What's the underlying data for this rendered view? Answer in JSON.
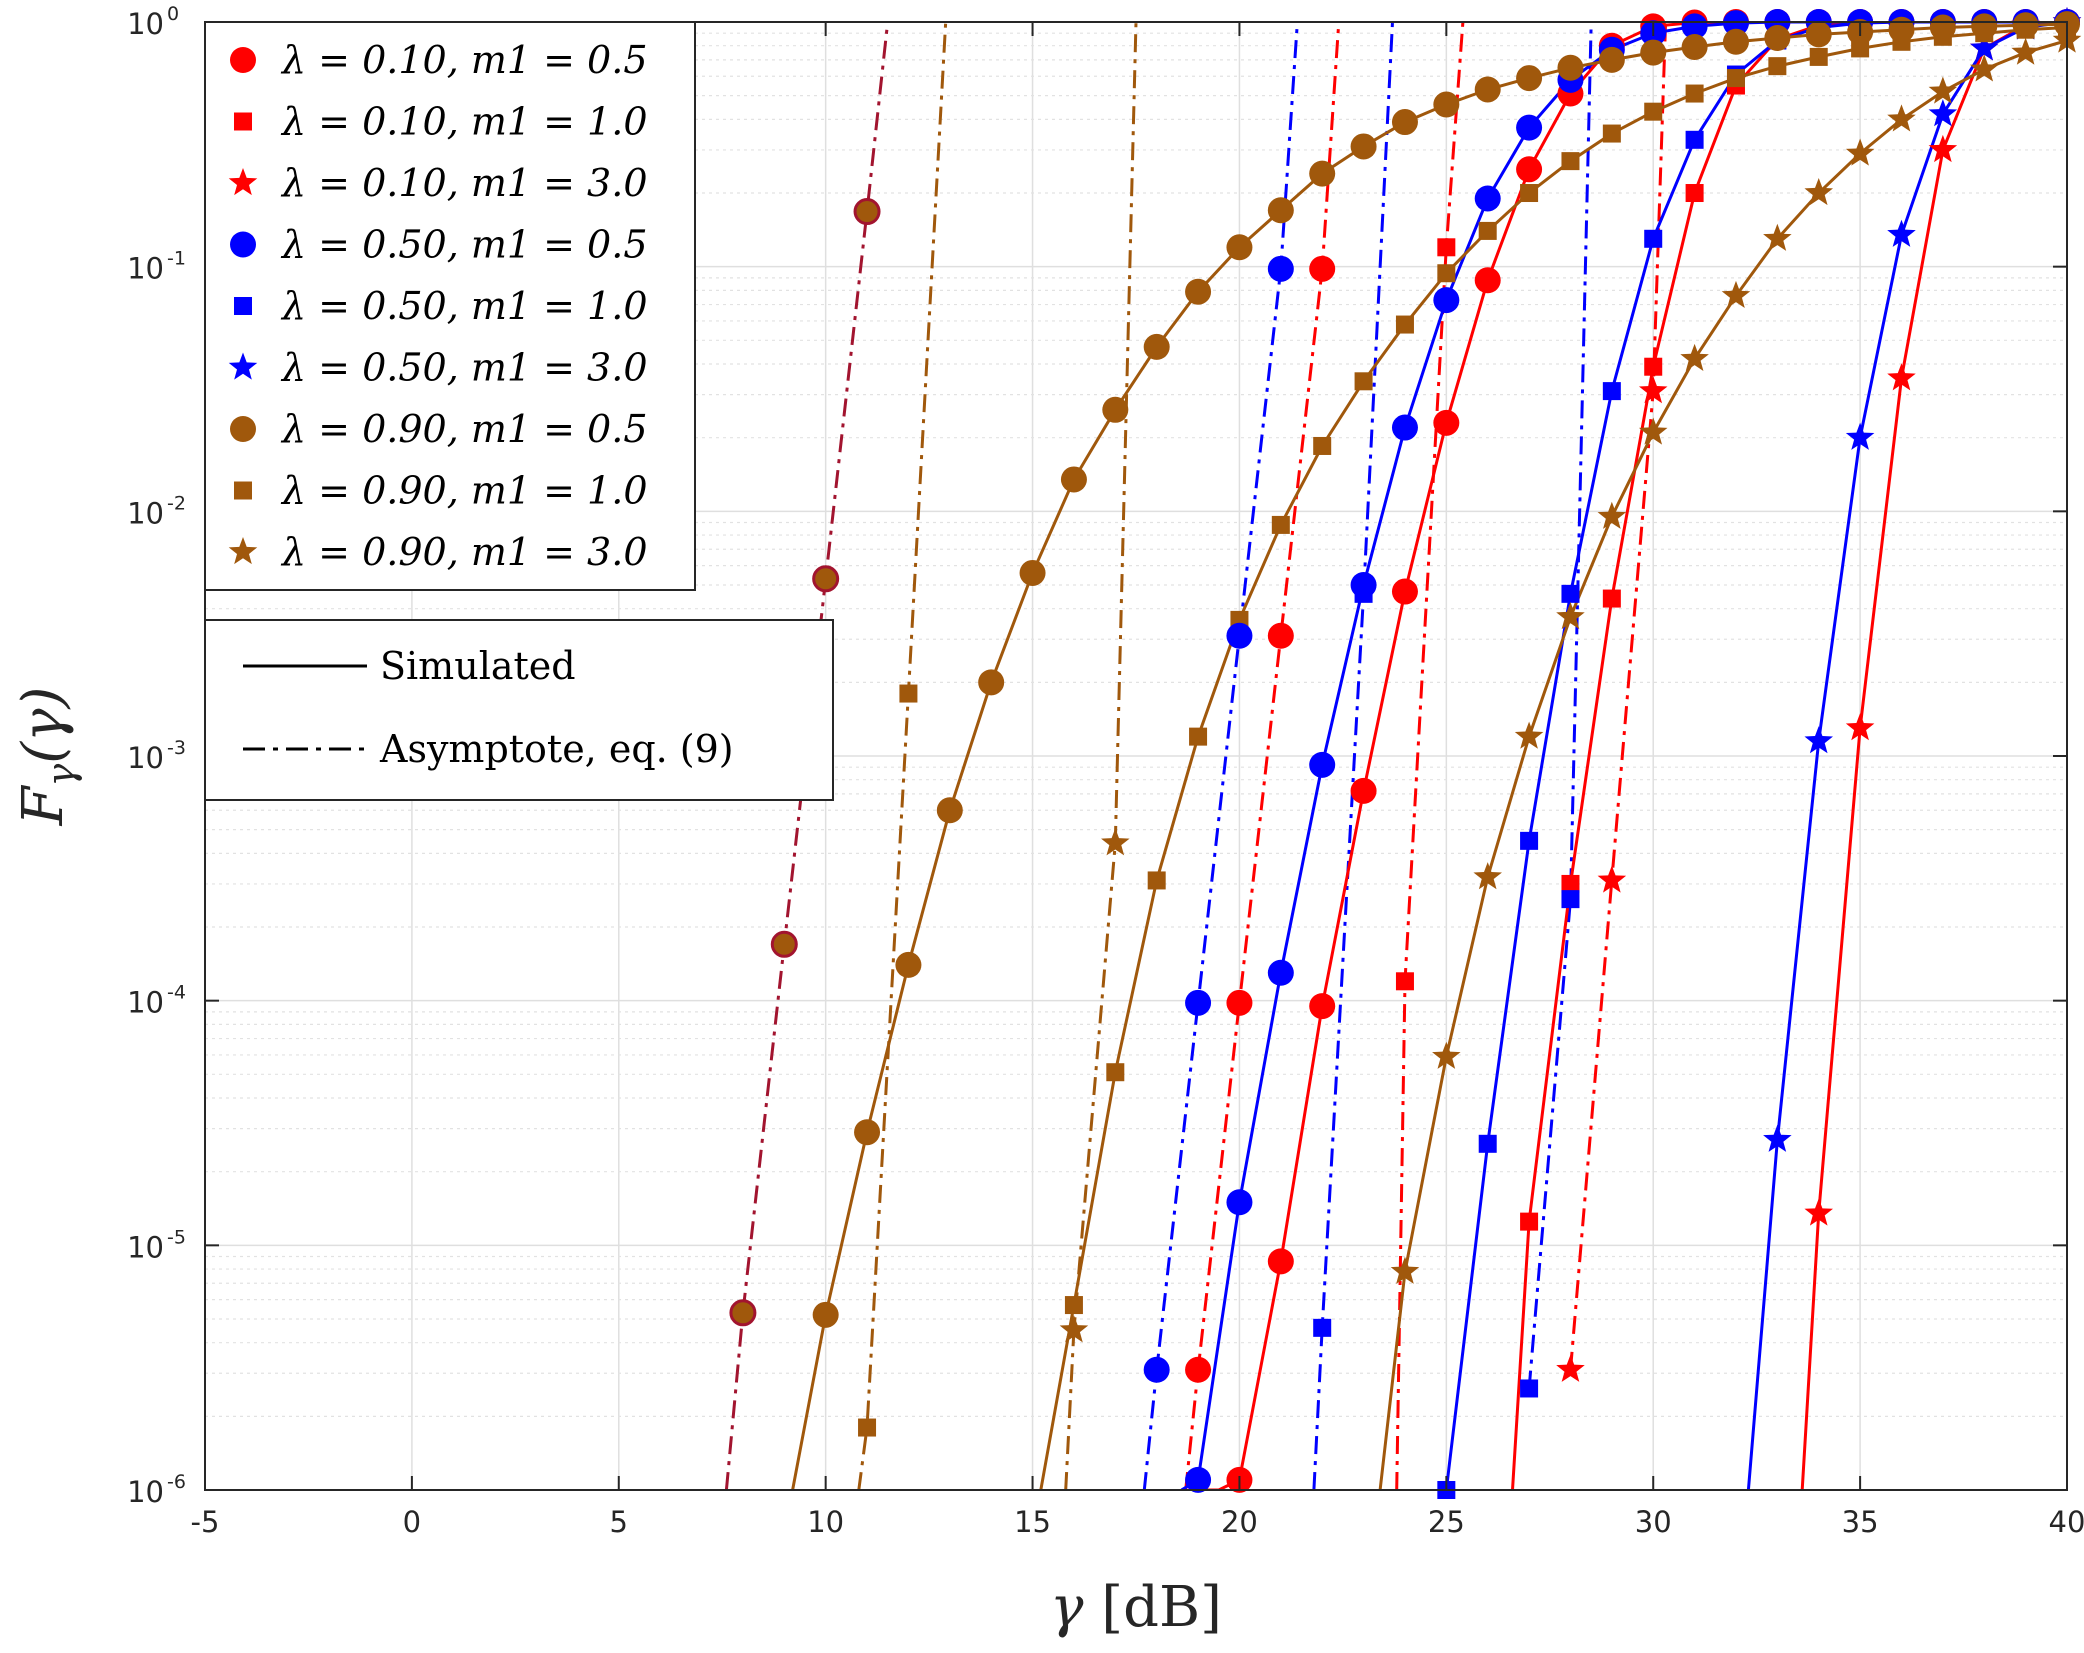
{
  "chart_data": {
    "type": "line",
    "xlabel": "γ [dB]",
    "ylabel": "F_γ(γ)",
    "ylabel_main": "F",
    "ylabel_sub": "γ",
    "ylabel_tail": "(γ)",
    "xlim": [
      -5,
      40
    ],
    "ylim": [
      1e-06,
      1
    ],
    "yscale": "log",
    "grid": true,
    "minor_grid": true,
    "x_ticks": [
      "-5",
      "0",
      "5",
      "10",
      "15",
      "20",
      "25",
      "30",
      "35",
      "40"
    ],
    "y_ticks": [
      {
        "base": "10",
        "exp": "-6"
      },
      {
        "base": "10",
        "exp": "-5"
      },
      {
        "base": "10",
        "exp": "-4"
      },
      {
        "base": "10",
        "exp": "-3"
      },
      {
        "base": "10",
        "exp": "-2"
      },
      {
        "base": "10",
        "exp": "-1"
      },
      {
        "base": "10",
        "exp": "0"
      }
    ],
    "colors": {
      "red": "#ff0000",
      "blue": "#0000ff",
      "brown": "#a0580c",
      "dark_red": "#a2142f"
    },
    "series": [
      {
        "name": "λ = 0.10, m1 = 0.5",
        "color": "#ff0000",
        "marker": "circle",
        "x": [
          19.2,
          19.5,
          20,
          21,
          22,
          23,
          24,
          25,
          26,
          27,
          28,
          29,
          30,
          31,
          32,
          33,
          34,
          35,
          36,
          37,
          38,
          39,
          40
        ],
        "y": [
          1e-06,
          1e-06,
          1.1e-06,
          8.6e-06,
          9.5e-05,
          0.00072,
          0.0047,
          0.023,
          0.088,
          0.25,
          0.51,
          0.8,
          0.96,
          0.995,
          1,
          1,
          1,
          1,
          1,
          1,
          1,
          1,
          1
        ]
      },
      {
        "name": "λ = 0.10, m1 = 1.0",
        "color": "#ff0000",
        "marker": "square",
        "x": [
          26.6,
          27,
          28,
          29,
          30,
          31,
          32,
          33,
          34,
          35,
          36,
          37,
          38,
          39,
          40
        ],
        "y": [
          1e-06,
          1.25e-05,
          0.0003,
          0.0044,
          0.039,
          0.2,
          0.55,
          0.85,
          0.97,
          0.995,
          1,
          1,
          1,
          1,
          1
        ]
      },
      {
        "name": "λ = 0.10, m1 = 3.0",
        "color": "#ff0000",
        "marker": "star",
        "x": [
          33.6,
          34,
          35,
          36,
          37,
          38,
          39,
          40
        ],
        "y": [
          1e-06,
          1.35e-05,
          0.0013,
          0.035,
          0.3,
          0.78,
          0.97,
          1
        ]
      },
      {
        "name": "λ = 0.50, m1 = 0.5",
        "color": "#0000ff",
        "marker": "circle",
        "x": [
          18.6,
          19,
          20,
          21,
          22,
          23,
          24,
          25,
          26,
          27,
          28,
          29,
          30,
          31,
          32,
          33,
          34,
          35,
          36,
          37,
          38,
          39,
          40
        ],
        "y": [
          1e-06,
          1.1e-06,
          1.5e-05,
          0.00013,
          0.00092,
          0.005,
          0.022,
          0.073,
          0.19,
          0.37,
          0.58,
          0.77,
          0.9,
          0.96,
          0.99,
          1,
          1,
          1,
          1,
          1,
          1,
          1,
          1
        ]
      },
      {
        "name": "λ = 0.50, m1 = 1.0",
        "color": "#0000ff",
        "marker": "square",
        "x": [
          25,
          26,
          27,
          28,
          29,
          30,
          31,
          32,
          33,
          34,
          35,
          36,
          37,
          38,
          39,
          40
        ],
        "y": [
          1e-06,
          2.6e-05,
          0.00045,
          0.0046,
          0.031,
          0.13,
          0.33,
          0.61,
          0.84,
          0.95,
          0.99,
          1,
          1,
          1,
          1,
          1
        ]
      },
      {
        "name": "λ = 0.50, m1 = 3.0",
        "color": "#0000ff",
        "marker": "star",
        "x": [
          32.3,
          33,
          34,
          35,
          36,
          37,
          38,
          39,
          40
        ],
        "y": [
          1e-06,
          2.7e-05,
          0.00115,
          0.02,
          0.135,
          0.42,
          0.78,
          0.95,
          1
        ]
      },
      {
        "name": "λ = 0.90, m1 = 0.5",
        "color": "#a0580c",
        "marker": "circle",
        "x": [
          9.2,
          10,
          11,
          12,
          13,
          14,
          15,
          16,
          17,
          18,
          19,
          20,
          21,
          22,
          23,
          24,
          25,
          26,
          27,
          28,
          29,
          30,
          31,
          32,
          33,
          34,
          35,
          36,
          37,
          38,
          39,
          40
        ],
        "y": [
          1e-06,
          5.2e-06,
          2.9e-05,
          0.00014,
          0.0006,
          0.002,
          0.0056,
          0.0135,
          0.026,
          0.047,
          0.079,
          0.12,
          0.17,
          0.24,
          0.31,
          0.39,
          0.46,
          0.53,
          0.59,
          0.65,
          0.7,
          0.75,
          0.79,
          0.83,
          0.86,
          0.89,
          0.91,
          0.93,
          0.95,
          0.96,
          0.97,
          0.98
        ]
      },
      {
        "name": "λ = 0.90, m1 = 1.0",
        "color": "#a0580c",
        "marker": "square",
        "x": [
          15.2,
          16,
          17,
          18,
          19,
          20,
          21,
          22,
          23,
          24,
          25,
          26,
          27,
          28,
          29,
          30,
          31,
          32,
          33,
          34,
          35,
          36,
          37,
          38,
          39,
          40
        ],
        "y": [
          1e-06,
          5.7e-06,
          5.1e-05,
          0.00031,
          0.0012,
          0.0036,
          0.0088,
          0.0185,
          0.034,
          0.058,
          0.094,
          0.14,
          0.2,
          0.27,
          0.35,
          0.43,
          0.51,
          0.59,
          0.66,
          0.72,
          0.78,
          0.83,
          0.87,
          0.9,
          0.93,
          0.95
        ]
      },
      {
        "name": "λ = 0.90, m1 = 3.0",
        "color": "#a0580c",
        "marker": "star",
        "x": [
          23.4,
          24,
          25,
          26,
          27,
          28,
          29,
          30,
          31,
          32,
          33,
          34,
          35,
          36,
          37,
          38,
          39,
          40
        ],
        "y": [
          1e-06,
          7.8e-06,
          5.9e-05,
          0.00032,
          0.0012,
          0.0037,
          0.0095,
          0.021,
          0.042,
          0.076,
          0.13,
          0.2,
          0.29,
          0.4,
          0.52,
          0.64,
          0.75,
          0.84
        ]
      }
    ],
    "asymptotes": [
      {
        "color": "#a2142f",
        "x": [
          7.6,
          8,
          9,
          10,
          11,
          11.5
        ],
        "y": [
          1e-06,
          5.3e-06,
          0.00017,
          0.0053,
          0.168,
          1
        ],
        "markers": [
          8,
          9,
          10,
          11
        ]
      },
      {
        "color": "#a0580c",
        "x": [
          10.8,
          11,
          12,
          12.9
        ],
        "y": [
          1e-06,
          1.8e-06,
          0.0018,
          1
        ],
        "markers": [
          11,
          12
        ]
      },
      {
        "color": "#a0580c",
        "x": [
          15.8,
          16,
          17,
          17.5
        ],
        "y": [
          1e-06,
          4.5e-06,
          0.00044,
          1
        ],
        "markers": [
          16,
          17
        ]
      },
      {
        "color": "#0000ff",
        "x": [
          17.7,
          18,
          19,
          20,
          21,
          21.4
        ],
        "y": [
          1e-06,
          3.1e-06,
          9.8e-05,
          0.0031,
          0.098,
          1
        ],
        "markers": [
          18,
          19,
          20,
          21
        ]
      },
      {
        "color": "#ff0000",
        "x": [
          18.7,
          19,
          20,
          21,
          22,
          22.4
        ],
        "y": [
          1e-06,
          3.1e-06,
          9.8e-05,
          0.0031,
          0.098,
          1
        ],
        "markers": [
          19,
          20,
          21,
          22
        ]
      },
      {
        "color": "#0000ff",
        "x": [
          21.8,
          22,
          23,
          23.7
        ],
        "y": [
          1e-06,
          4.6e-06,
          0.0046,
          1
        ],
        "markers": [
          22,
          23
        ]
      },
      {
        "color": "#ff0000",
        "x": [
          23.8,
          24,
          25,
          25.4
        ],
        "y": [
          1e-06,
          0.00012,
          0.12,
          1
        ],
        "markers": [
          24,
          25
        ]
      },
      {
        "color": "#0000ff",
        "x": [
          27,
          28,
          28.5
        ],
        "y": [
          2.6e-06,
          0.00026,
          1
        ],
        "markers": [
          27,
          28
        ]
      },
      {
        "color": "#ff0000",
        "x": [
          28,
          29,
          30,
          30.3
        ],
        "y": [
          3.1e-06,
          0.00031,
          0.031,
          1
        ],
        "markers": [
          28,
          29,
          30
        ]
      }
    ],
    "legend": {
      "position": "top-left",
      "entries": [
        {
          "label": "λ = 0.10, m1 = 0.5",
          "color": "#ff0000",
          "marker": "circle"
        },
        {
          "label": "λ = 0.10, m1 = 1.0",
          "color": "#ff0000",
          "marker": "square"
        },
        {
          "label": "λ = 0.10, m1 = 3.0",
          "color": "#ff0000",
          "marker": "star"
        },
        {
          "label": "λ = 0.50, m1 = 0.5",
          "color": "#0000ff",
          "marker": "circle"
        },
        {
          "label": "λ = 0.50, m1 = 1.0",
          "color": "#0000ff",
          "marker": "square"
        },
        {
          "label": "λ = 0.50, m1 = 3.0",
          "color": "#0000ff",
          "marker": "star"
        },
        {
          "label": "λ = 0.90, m1 = 0.5",
          "color": "#a0580c",
          "marker": "circle"
        },
        {
          "label": "λ = 0.90, m1 = 1.0",
          "color": "#a0580c",
          "marker": "square"
        },
        {
          "label": "λ = 0.90, m1 = 3.0",
          "color": "#a0580c",
          "marker": "star"
        }
      ],
      "line_styles": [
        {
          "label": "Simulated",
          "style": "solid"
        },
        {
          "label": "Asymptote, eq. (9)",
          "style": "dashdot"
        }
      ]
    }
  }
}
